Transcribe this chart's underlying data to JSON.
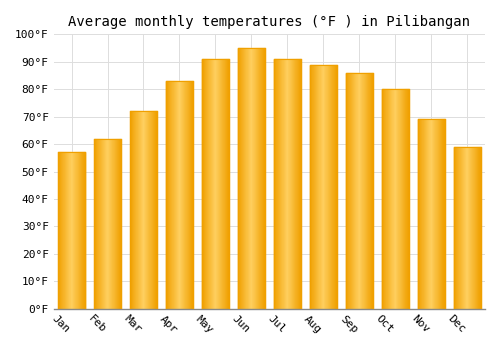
{
  "title": "Average monthly temperatures (°F ) in Pilibangan",
  "months": [
    "Jan",
    "Feb",
    "Mar",
    "Apr",
    "May",
    "Jun",
    "Jul",
    "Aug",
    "Sep",
    "Oct",
    "Nov",
    "Dec"
  ],
  "values": [
    57,
    62,
    72,
    83,
    91,
    95,
    91,
    89,
    86,
    80,
    69,
    59
  ],
  "bar_color_light": "#FFD060",
  "bar_color_dark": "#F0A000",
  "background_color": "#FFFFFF",
  "grid_color": "#DDDDDD",
  "ylim": [
    0,
    100
  ],
  "yticks": [
    0,
    10,
    20,
    30,
    40,
    50,
    60,
    70,
    80,
    90,
    100
  ],
  "ytick_labels": [
    "0°F",
    "10°F",
    "20°F",
    "30°F",
    "40°F",
    "50°F",
    "60°F",
    "70°F",
    "80°F",
    "90°F",
    "100°F"
  ],
  "title_fontsize": 10,
  "tick_fontsize": 8,
  "font_family": "monospace",
  "bar_width": 0.75,
  "xlabel_rotation": -45
}
